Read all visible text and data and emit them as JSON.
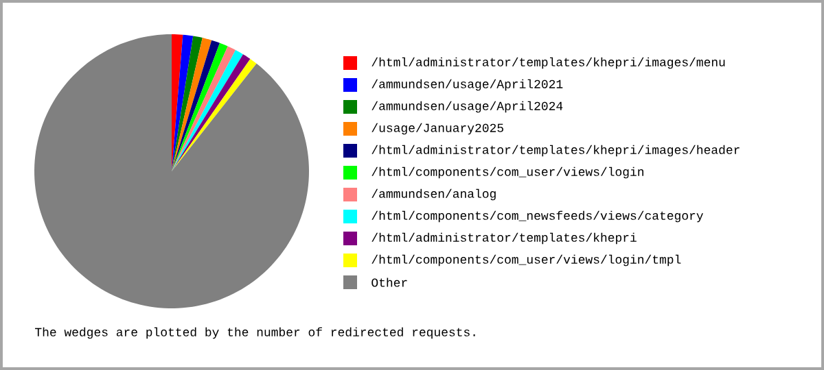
{
  "chart_data": {
    "type": "pie",
    "categories": [
      "/html/administrator/templates/khepri/images/menu",
      "/ammundsen/usage/April2021",
      "/ammundsen/usage/April2024",
      "/usage/January2025",
      "/html/administrator/templates/khepri/images/header",
      "/html/components/com_user/views/login",
      "/ammundsen/analog",
      "/html/components/com_newsfeeds/views/category",
      "/html/administrator/templates/khepri",
      "/html/components/com_user/views/login/tmpl",
      "Other"
    ],
    "values": [
      1.3,
      1.2,
      1.1,
      1.1,
      1.0,
      1.0,
      1.0,
      1.0,
      1.0,
      0.9,
      89.4
    ],
    "colors": [
      "#ff0000",
      "#0000ff",
      "#008000",
      "#ff8000",
      "#000080",
      "#00ff00",
      "#ff8080",
      "#00ffff",
      "#800080",
      "#ffff00",
      "#808080"
    ],
    "legend": "right",
    "annotations": [
      "The wedges are plotted by the number of redirected requests."
    ]
  }
}
